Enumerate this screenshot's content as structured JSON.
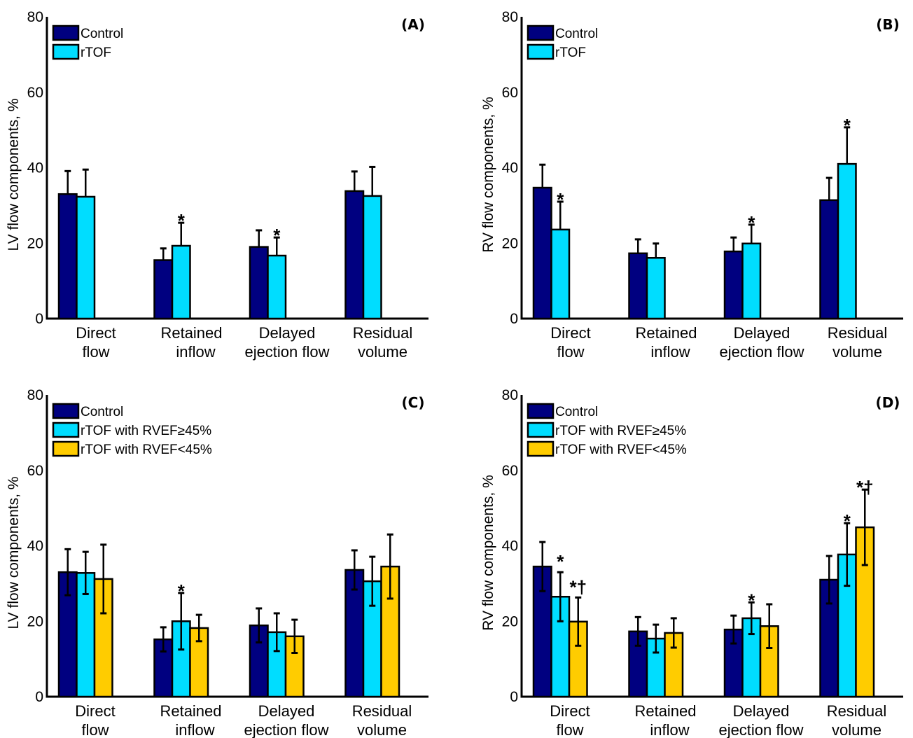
{
  "chart_data": [
    {
      "type": "bar",
      "panel": "(A)",
      "ylabel": "LV flow components, %",
      "ylim": [
        0,
        80
      ],
      "yticks": [
        "0",
        "20",
        "40",
        "60",
        "80"
      ],
      "categories": [
        [
          "Direct",
          "flow"
        ],
        [
          "Retained",
          "inflow"
        ],
        [
          "Delayed",
          "ejection flow"
        ],
        [
          "Residual",
          "volume"
        ]
      ],
      "legend_position": "top-left",
      "series": [
        {
          "name": "Control",
          "color": "#000080",
          "values": [
            33.0,
            15.5,
            19.0,
            33.8
          ],
          "err_upper": [
            39.1,
            18.6,
            23.4,
            39.0
          ],
          "err_lower": [
            null,
            null,
            null,
            null
          ],
          "annotations": [
            "",
            "",
            "",
            ""
          ]
        },
        {
          "name": "rTOF",
          "color": "#00DDFF",
          "values": [
            32.3,
            19.3,
            16.7,
            32.5
          ],
          "err_upper": [
            39.5,
            25.4,
            21.5,
            40.2
          ],
          "err_lower": [
            null,
            null,
            null,
            null
          ],
          "annotations": [
            "",
            "*",
            "*",
            ""
          ]
        }
      ]
    },
    {
      "type": "bar",
      "panel": "(B)",
      "ylabel": "RV flow components, %",
      "ylim": [
        0,
        80
      ],
      "yticks": [
        "0",
        "20",
        "40",
        "60",
        "80"
      ],
      "categories": [
        [
          "Direct",
          "flow"
        ],
        [
          "Retained",
          "inflow"
        ],
        [
          "Delayed",
          "ejection flow"
        ],
        [
          "Residual",
          "volume"
        ]
      ],
      "legend_position": "top-left",
      "series": [
        {
          "name": "Control",
          "color": "#000080",
          "values": [
            34.7,
            17.3,
            17.8,
            31.4
          ],
          "err_upper": [
            40.8,
            21.0,
            21.5,
            37.3
          ],
          "err_lower": [
            null,
            null,
            null,
            null
          ],
          "annotations": [
            "",
            "",
            "",
            ""
          ]
        },
        {
          "name": "rTOF",
          "color": "#00DDFF",
          "values": [
            23.6,
            16.1,
            19.9,
            41.0
          ],
          "err_upper": [
            31.0,
            19.9,
            24.9,
            50.7
          ],
          "err_lower": [
            null,
            null,
            null,
            null
          ],
          "annotations": [
            "*",
            "",
            "*",
            "*"
          ]
        }
      ]
    },
    {
      "type": "bar",
      "panel": "(C)",
      "ylabel": "LV flow components, %",
      "ylim": [
        0,
        80
      ],
      "yticks": [
        "0",
        "20",
        "40",
        "60",
        "80"
      ],
      "categories": [
        [
          "Direct",
          "flow"
        ],
        [
          "Retained",
          "inflow"
        ],
        [
          "Delayed",
          "ejection flow"
        ],
        [
          "Residual",
          "volume"
        ]
      ],
      "legend_position": "top-left",
      "series": [
        {
          "name": "Control",
          "color": "#000080",
          "values": [
            33.0,
            15.2,
            18.9,
            33.6
          ],
          "err_upper": [
            39.1,
            18.4,
            23.4,
            38.8
          ],
          "err_lower": [
            26.9,
            12.0,
            14.4,
            28.4
          ],
          "annotations": [
            "",
            "",
            "",
            ""
          ]
        },
        {
          "name": "rTOF with RVEF≥45%",
          "color": "#00DDFF",
          "values": [
            32.8,
            20.0,
            17.1,
            30.6
          ],
          "err_upper": [
            38.4,
            27.5,
            22.1,
            37.1
          ],
          "err_lower": [
            27.2,
            12.5,
            12.1,
            24.1
          ],
          "annotations": [
            "",
            "*",
            "",
            ""
          ]
        },
        {
          "name": "rTOF with RVEF<45%",
          "color": "#FFCC00",
          "values": [
            31.2,
            18.2,
            16.0,
            34.5
          ],
          "err_upper": [
            40.3,
            21.7,
            20.4,
            43.0
          ],
          "err_lower": [
            22.1,
            14.7,
            11.6,
            26.0
          ],
          "annotations": [
            "",
            "",
            "",
            ""
          ]
        }
      ]
    },
    {
      "type": "bar",
      "panel": "(D)",
      "ylabel": "RV flow components, %",
      "ylim": [
        0,
        80
      ],
      "yticks": [
        "0",
        "20",
        "40",
        "60",
        "80"
      ],
      "categories": [
        [
          "Direct",
          "flow"
        ],
        [
          "Retained",
          "inflow"
        ],
        [
          "Delayed",
          "ejection flow"
        ],
        [
          "Residual",
          "volume"
        ]
      ],
      "legend_position": "top-left",
      "series": [
        {
          "name": "Control",
          "color": "#000080",
          "values": [
            34.5,
            17.3,
            17.8,
            31.0
          ],
          "err_upper": [
            41.0,
            21.1,
            21.5,
            37.3
          ],
          "err_lower": [
            28.0,
            13.5,
            14.1,
            24.7
          ],
          "annotations": [
            "",
            "",
            "",
            ""
          ]
        },
        {
          "name": "rTOF with RVEF≥45%",
          "color": "#00DDFF",
          "values": [
            26.5,
            15.4,
            20.8,
            37.7
          ],
          "err_upper": [
            33.0,
            19.1,
            25.0,
            46.0
          ],
          "err_lower": [
            20.0,
            11.7,
            16.6,
            29.4
          ],
          "annotations": [
            "*",
            "",
            "*",
            "*"
          ]
        },
        {
          "name": "rTOF with RVEF<45%",
          "color": "#FFCC00",
          "values": [
            19.9,
            16.9,
            18.7,
            44.9
          ],
          "err_upper": [
            26.3,
            20.8,
            24.5,
            54.9
          ],
          "err_lower": [
            13.5,
            13.0,
            12.9,
            34.9
          ],
          "annotations": [
            "*†",
            "",
            "",
            "*†"
          ]
        }
      ]
    }
  ]
}
